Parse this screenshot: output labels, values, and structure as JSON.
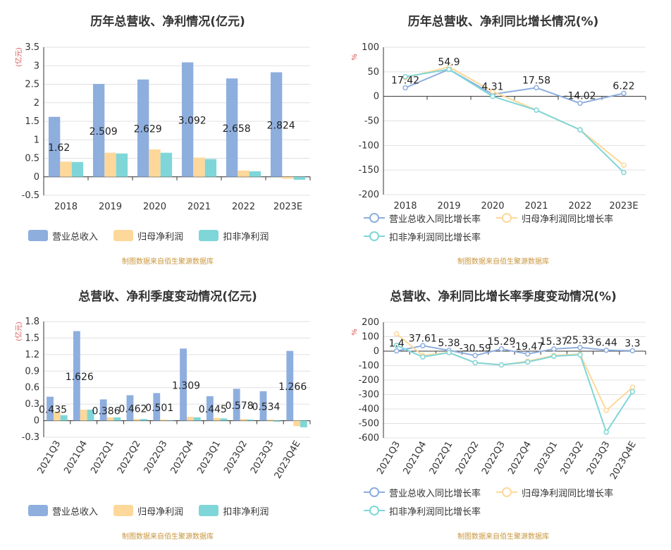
{
  "source_text": "制图数据来自佰生聚源数据库",
  "colors": {
    "revenue": "#8eaede",
    "parent_profit": "#fdd89a",
    "deducted_profit": "#7fd6d8",
    "axis": "#333333",
    "grid": "#e0e0e0",
    "unit": "#d9534f"
  },
  "legend_bars": [
    "营业总收入",
    "归母净利润",
    "扣非净利润"
  ],
  "legend_lines": [
    "营业总收入同比增长率",
    "归母净利润同比增长率",
    "扣非净利润同比增长率"
  ],
  "chart_data": [
    {
      "type": "bar",
      "title": "历年总营收、净利情况(亿元)",
      "ylabel": "(亿元)",
      "ylim": [
        -0.5,
        3.5
      ],
      "yticks": [
        -0.5,
        0,
        0.5,
        1,
        1.5,
        2,
        2.5,
        3,
        3.5
      ],
      "categories": [
        "2018",
        "2019",
        "2020",
        "2021",
        "2022",
        "2023E"
      ],
      "series": [
        {
          "name": "营业总收入",
          "values": [
            1.62,
            2.509,
            2.629,
            3.092,
            2.658,
            2.824
          ]
        },
        {
          "name": "归母净利润",
          "values": [
            0.41,
            0.65,
            0.74,
            0.52,
            0.17,
            -0.05
          ]
        },
        {
          "name": "扣非净利润",
          "values": [
            0.4,
            0.63,
            0.65,
            0.48,
            0.15,
            -0.08
          ]
        }
      ],
      "data_labels": [
        "1.62",
        "2.509",
        "2.629",
        "3.092",
        "2.658",
        "2.824"
      ],
      "grid": true,
      "legend": "bottom"
    },
    {
      "type": "line",
      "title": "历年总营收、净利同比增长情况(%)",
      "ylabel": "%",
      "ylim": [
        -200,
        100
      ],
      "yticks": [
        -200,
        -150,
        -100,
        -50,
        0,
        50,
        100
      ],
      "categories": [
        "2018",
        "2019",
        "2020",
        "2021",
        "2022",
        "2023E"
      ],
      "series": [
        {
          "name": "营业总收入同比增长率",
          "values": [
            17.42,
            54.9,
            4.31,
            17.58,
            -14.02,
            6.22
          ]
        },
        {
          "name": "归母净利润同比增长率",
          "values": [
            38,
            60,
            10,
            -28,
            -68,
            -140
          ]
        },
        {
          "name": "扣非净利润同比增长率",
          "values": [
            40,
            55,
            0,
            -28,
            -68,
            -155
          ]
        }
      ],
      "data_labels": [
        "17.42",
        "54.9",
        "4.31",
        "17.58",
        "-14.02",
        "6.22"
      ],
      "grid": true,
      "legend": "bottom"
    },
    {
      "type": "bar",
      "title": "总营收、净利季度变动情况(亿元)",
      "ylabel": "(亿元)",
      "ylim": [
        -0.3,
        1.8
      ],
      "yticks": [
        -0.3,
        0,
        0.3,
        0.6,
        0.9,
        1.2,
        1.5,
        1.8
      ],
      "categories": [
        "2021Q3",
        "2021Q4",
        "2022Q1",
        "2022Q2",
        "2022Q3",
        "2022Q4",
        "2023Q1",
        "2023Q2",
        "2023Q3",
        "2023Q4E"
      ],
      "series": [
        {
          "name": "营业总收入",
          "values": [
            0.435,
            1.626,
            0.386,
            0.462,
            0.501,
            1.309,
            0.445,
            0.578,
            0.534,
            1.266
          ]
        },
        {
          "name": "归母净利润",
          "values": [
            0.16,
            0.2,
            0.06,
            0.03,
            0.02,
            0.07,
            0.05,
            0.03,
            0.02,
            -0.1
          ]
        },
        {
          "name": "扣非净利润",
          "values": [
            0.1,
            0.2,
            0.06,
            0.03,
            0.01,
            0.06,
            0.04,
            0.02,
            -0.02,
            -0.12
          ]
        }
      ],
      "data_labels": [
        "0.435",
        "1.626",
        "0.386",
        "0.462",
        "0.501",
        "1.309",
        "0.445",
        "0.578",
        "0.534",
        "1.266"
      ],
      "grid": true,
      "legend": "bottom"
    },
    {
      "type": "line",
      "title": "总营收、净利同比增长率季度变动情况(%)",
      "ylabel": "%",
      "ylim": [
        -600,
        200
      ],
      "yticks": [
        -600,
        -500,
        -400,
        -300,
        -200,
        -100,
        0,
        100,
        200
      ],
      "categories": [
        "2021Q3",
        "2021Q4",
        "2022Q1",
        "2022Q2",
        "2022Q3",
        "2022Q4",
        "2023Q1",
        "2023Q2",
        "2023Q3",
        "2023Q4E"
      ],
      "series": [
        {
          "name": "营业总收入同比增长率",
          "values": [
            1.4,
            37.61,
            5.38,
            -30.59,
            15.29,
            -19.47,
            15.37,
            25.33,
            6.44,
            3.3
          ]
        },
        {
          "name": "归母净利润同比增长率",
          "values": [
            120,
            -30,
            -10,
            -80,
            -95,
            -70,
            -30,
            -20,
            -410,
            -250
          ]
        },
        {
          "name": "扣非净利润同比增长率",
          "values": [
            40,
            -40,
            -10,
            -80,
            -95,
            -75,
            -35,
            -25,
            -560,
            -280
          ]
        }
      ],
      "data_labels": [
        "1.4",
        "37.61",
        "5.38",
        "-30.59",
        "15.29",
        "-19.47",
        "15.37",
        "25.33",
        "6.44",
        "3.3"
      ],
      "grid": true,
      "legend": "bottom"
    }
  ]
}
